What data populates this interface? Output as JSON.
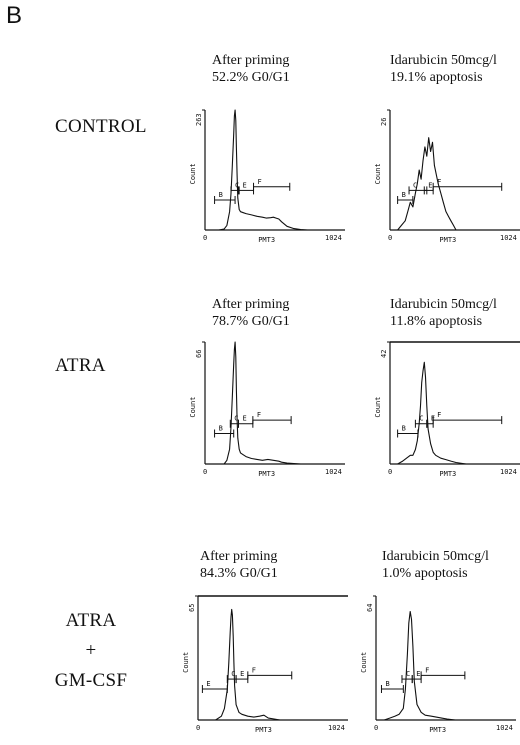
{
  "figure_label": "B",
  "rows": [
    {
      "label_lines": [
        "CONTROL"
      ]
    },
    {
      "label_lines": [
        "ATRA"
      ]
    },
    {
      "label_lines": [
        "ATRA",
        "+",
        "GM-CSF"
      ]
    }
  ],
  "captions": [
    {
      "line1": "After priming",
      "line2": "52.2% G0/G1"
    },
    {
      "line1": "Idarubicin 50mcg/l",
      "line2": "19.1% apoptosis"
    },
    {
      "line1": "After priming",
      "line2": "78.7% G0/G1"
    },
    {
      "line1": "Idarubicin 50mcg/l",
      "line2": "11.8% apoptosis"
    },
    {
      "line1": "After priming",
      "line2": "84.3% G0/G1"
    },
    {
      "line1": "Idarubicin 50mcg/l",
      "line2": "1.0% apoptosis"
    }
  ],
  "chart_data": [
    {
      "type": "histogram",
      "xlabel": "PMT3",
      "ylabel": "Count",
      "xlim": [
        0,
        1024
      ],
      "ylim": [
        0,
        263
      ],
      "x_ticks": [
        "0",
        "1024"
      ],
      "y_max_label": "263",
      "x": [
        0,
        60,
        100,
        140,
        160,
        180,
        190,
        200,
        210,
        215,
        220,
        225,
        230,
        235,
        240,
        250,
        260,
        280,
        300,
        340,
        380,
        420,
        450,
        480,
        500,
        520,
        540,
        560,
        600,
        650,
        700,
        750,
        800
      ],
      "y": [
        0,
        0,
        0,
        2,
        10,
        40,
        80,
        140,
        210,
        250,
        263,
        240,
        180,
        120,
        70,
        45,
        40,
        38,
        36,
        33,
        30,
        28,
        26,
        27,
        28,
        26,
        24,
        18,
        8,
        3,
        1,
        0,
        0
      ],
      "gates": [
        {
          "label": "B",
          "x_start": 70,
          "x_end": 220
        },
        {
          "label": "C",
          "x_start": 190,
          "x_end": 250
        },
        {
          "label": "E",
          "x_start": 245,
          "x_end": 355
        },
        {
          "label": "F",
          "x_start": 355,
          "x_end": 620
        }
      ]
    },
    {
      "type": "histogram",
      "xlabel": "PMT3",
      "ylabel": "Count",
      "xlim": [
        0,
        1024
      ],
      "ylim": [
        0,
        26
      ],
      "x_ticks": [
        "0",
        "1024"
      ],
      "y_max_label": "26",
      "x": [
        0,
        60,
        90,
        120,
        140,
        160,
        180,
        200,
        215,
        230,
        245,
        260,
        275,
        290,
        305,
        320,
        335,
        350,
        365,
        380,
        400,
        420,
        440,
        460,
        480,
        500,
        520,
        560
      ],
      "y": [
        0,
        0,
        1,
        2,
        4,
        6,
        5,
        8,
        10,
        13,
        11,
        15,
        18,
        16,
        20,
        17,
        19,
        14,
        12,
        10,
        8,
        6,
        4,
        3,
        2,
        1,
        0,
        0
      ],
      "gates": [
        {
          "label": "B",
          "x_start": 60,
          "x_end": 180
        },
        {
          "label": "C",
          "x_start": 150,
          "x_end": 290
        },
        {
          "label": "E",
          "x_start": 270,
          "x_end": 340
        },
        {
          "label": "F",
          "x_start": 340,
          "x_end": 880
        }
      ]
    },
    {
      "type": "histogram",
      "xlabel": "PMT3",
      "ylabel": "Count",
      "xlim": [
        0,
        1024
      ],
      "ylim": [
        0,
        66
      ],
      "x_ticks": [
        "0",
        "1024"
      ],
      "y_max_label": "66",
      "x": [
        0,
        60,
        100,
        140,
        160,
        180,
        190,
        200,
        210,
        215,
        220,
        225,
        230,
        235,
        240,
        250,
        260,
        280,
        300,
        340,
        380,
        420,
        460,
        500,
        540,
        560,
        600,
        700,
        800
      ],
      "y": [
        0,
        0,
        0,
        0,
        2,
        8,
        20,
        36,
        54,
        62,
        66,
        58,
        40,
        24,
        14,
        8,
        6,
        5,
        4,
        3,
        2.5,
        2,
        2.5,
        2,
        1.5,
        1,
        0.5,
        0,
        0
      ],
      "gates": [
        {
          "label": "B",
          "x_start": 70,
          "x_end": 210
        },
        {
          "label": "C",
          "x_start": 185,
          "x_end": 245
        },
        {
          "label": "E",
          "x_start": 245,
          "x_end": 350
        },
        {
          "label": "F",
          "x_start": 350,
          "x_end": 630
        }
      ]
    },
    {
      "type": "histogram",
      "xlabel": "PMT3",
      "ylabel": "Count",
      "xlim": [
        0,
        1024
      ],
      "ylim": [
        0,
        42
      ],
      "x_ticks": [
        "0",
        "1024"
      ],
      "y_max_label": "42",
      "x": [
        0,
        60,
        100,
        130,
        160,
        180,
        200,
        215,
        230,
        240,
        250,
        260,
        270,
        280,
        290,
        300,
        320,
        340,
        360,
        400,
        440,
        480,
        520,
        600
      ],
      "y": [
        0,
        0,
        1,
        2,
        3,
        3,
        5,
        8,
        14,
        20,
        28,
        32,
        35,
        30,
        20,
        12,
        7,
        4,
        3,
        2,
        1.5,
        1,
        0.5,
        0
      ],
      "gates": [
        {
          "label": "B",
          "x_start": 60,
          "x_end": 220
        },
        {
          "label": "C",
          "x_start": 200,
          "x_end": 290
        },
        {
          "label": "E",
          "x_start": 290,
          "x_end": 340
        },
        {
          "label": "F",
          "x_start": 340,
          "x_end": 880
        }
      ]
    },
    {
      "type": "histogram",
      "xlabel": "PMT3",
      "ylabel": "Count",
      "xlim": [
        0,
        1024
      ],
      "ylim": [
        0,
        65
      ],
      "x_ticks": [
        "0",
        "1024"
      ],
      "y_max_label": "65",
      "x": [
        0,
        80,
        120,
        160,
        180,
        200,
        210,
        220,
        225,
        230,
        235,
        240,
        245,
        250,
        260,
        280,
        300,
        340,
        380,
        420,
        450,
        480,
        520,
        560
      ],
      "y": [
        0,
        0,
        0,
        2,
        6,
        16,
        30,
        46,
        54,
        58,
        55,
        44,
        30,
        18,
        8,
        4,
        3,
        2,
        1.5,
        2,
        2.5,
        1,
        0.5,
        0
      ],
      "gates": [
        {
          "label": "E",
          "x_start": 30,
          "x_end": 200
        },
        {
          "label": "C",
          "x_start": 200,
          "x_end": 260
        },
        {
          "label": "E",
          "x_start": 260,
          "x_end": 340
        },
        {
          "label": "F",
          "x_start": 340,
          "x_end": 640
        }
      ]
    },
    {
      "type": "histogram",
      "xlabel": "PMT3",
      "ylabel": "Count",
      "xlim": [
        0,
        1024
      ],
      "ylim": [
        0,
        64
      ],
      "x_ticks": [
        "0",
        "1024"
      ],
      "y_max_label": "64",
      "x": [
        0,
        60,
        100,
        140,
        170,
        200,
        215,
        230,
        240,
        250,
        260,
        270,
        280,
        300,
        330,
        360,
        400,
        440,
        480,
        520,
        580
      ],
      "y": [
        0,
        0,
        1,
        2,
        3,
        6,
        16,
        34,
        50,
        56,
        52,
        38,
        20,
        8,
        4,
        2.5,
        2,
        1.5,
        1,
        0.5,
        0
      ],
      "gates": [
        {
          "label": "B",
          "x_start": 40,
          "x_end": 200
        },
        {
          "label": "C",
          "x_start": 190,
          "x_end": 265
        },
        {
          "label": "E",
          "x_start": 265,
          "x_end": 330
        },
        {
          "label": "F",
          "x_start": 330,
          "x_end": 650
        }
      ]
    }
  ]
}
